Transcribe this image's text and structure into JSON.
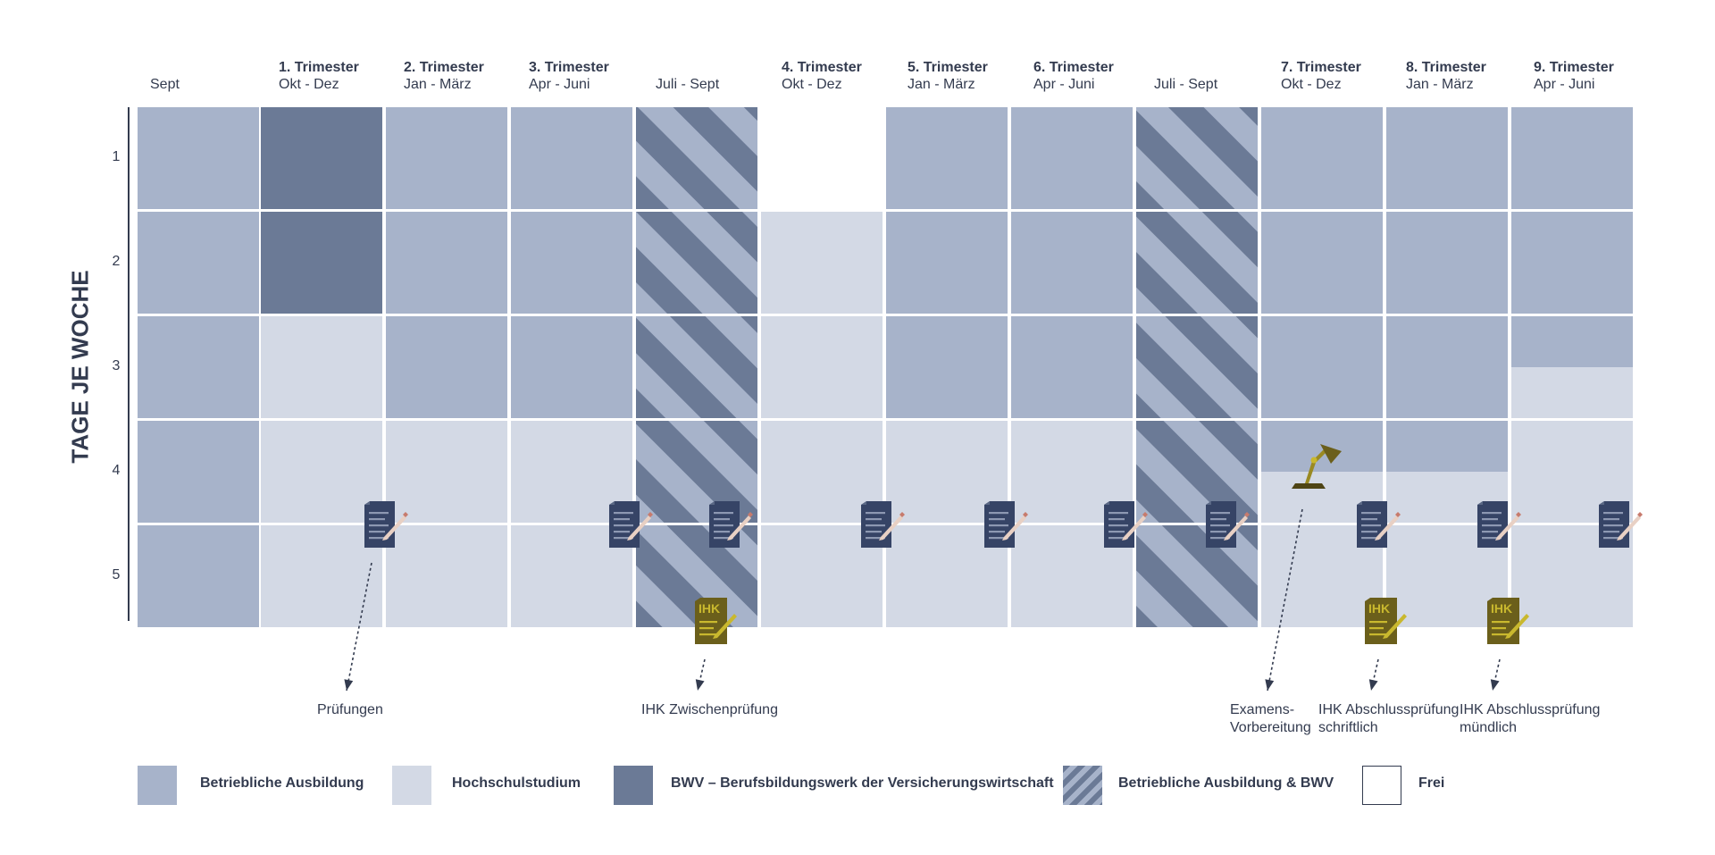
{
  "axis": {
    "title": "TAGE JE WOCHE",
    "rows": [
      "1",
      "2",
      "3",
      "4",
      "5"
    ]
  },
  "columns": [
    {
      "title": "",
      "sub": "Sept",
      "fills": [
        "A",
        "A",
        "A",
        "A",
        "A"
      ]
    },
    {
      "title": "1. Trimester",
      "sub": "Okt - Dez",
      "fills": [
        "B",
        "B",
        "H",
        "H",
        "H"
      ]
    },
    {
      "title": "2. Trimester",
      "sub": "Jan - März",
      "fills": [
        "A",
        "A",
        "A",
        "H",
        "H"
      ]
    },
    {
      "title": "3. Trimester",
      "sub": "Apr - Juni",
      "fills": [
        "A",
        "A",
        "A",
        "H",
        "H"
      ]
    },
    {
      "title": "",
      "sub": "Juli - Sept",
      "fills": [
        "S",
        "S",
        "S",
        "S",
        "S"
      ]
    },
    {
      "title": "4. Trimester",
      "sub": "Okt - Dez",
      "fills": [
        "F",
        "H",
        "H",
        "H",
        "H"
      ]
    },
    {
      "title": "5. Trimester",
      "sub": "Jan - März",
      "fills": [
        "A",
        "A",
        "A",
        "H",
        "H"
      ]
    },
    {
      "title": "6. Trimester",
      "sub": "Apr - Juni",
      "fills": [
        "A",
        "A",
        "A",
        "H",
        "H"
      ]
    },
    {
      "title": "",
      "sub": "Juli - Sept",
      "fills": [
        "S",
        "S",
        "S",
        "S",
        "S"
      ]
    },
    {
      "title": "7. Trimester",
      "sub": "Okt - Dez",
      "fills": [
        "A",
        "A",
        "A",
        "A/H",
        "H"
      ]
    },
    {
      "title": "8. Trimester",
      "sub": "Jan - März",
      "fills": [
        "A",
        "A",
        "A",
        "A/H",
        "H"
      ]
    },
    {
      "title": "9. Trimester",
      "sub": "Apr - Juni",
      "fills": [
        "A",
        "A",
        "A/H",
        "H",
        "H"
      ]
    }
  ],
  "annotations": {
    "pruefungen": "Prüfungen",
    "zwischen": "IHK Zwischenprüfung",
    "examens_1": "Examens-",
    "examens_2": "Vorbereitung",
    "schriftlich_1": "IHK Abschlussprüfung",
    "schriftlich_2": "schriftlich",
    "muendlich_1": "IHK Abschlussprüfung",
    "muendlich_2": "mündlich"
  },
  "icons": {
    "exam": "document-pencil-icon",
    "ihk": "ihk-document-icon",
    "lamp": "desk-lamp-icon",
    "ihk_text": "IHK"
  },
  "legend": [
    {
      "key": "A",
      "label": "Betriebliche Ausbildung"
    },
    {
      "key": "H",
      "label": "Hochschulstudium"
    },
    {
      "key": "B",
      "label": "BWV – Berufsbildungswerk der Versicherungswirtschaft"
    },
    {
      "key": "S",
      "label": "Betriebliche Ausbildung & BWV"
    },
    {
      "key": "F",
      "label": "Frei"
    }
  ],
  "colors": {
    "ausbildung": "#a7b3ca",
    "hochschule": "#d3d9e5",
    "bwv": "#6b7a96",
    "frei": "#ffffff",
    "text": "#333b4f",
    "doc_icon": "#364466",
    "ihk_icon": "#6b5f1b",
    "ihk_accent": "#c9b82e"
  }
}
